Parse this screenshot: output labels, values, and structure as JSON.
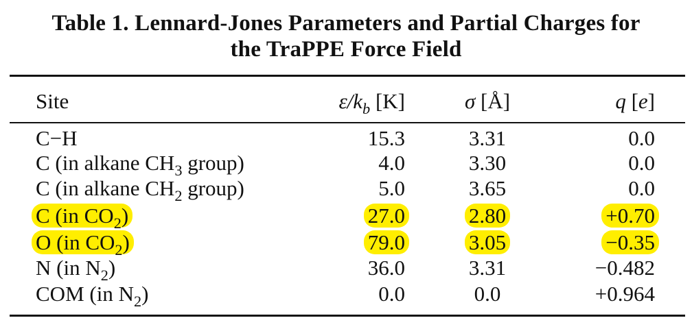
{
  "caption": {
    "line1": "Table 1.  Lennard-Jones Parameters and Partial Charges for",
    "line2": "the TraPPE Force Field"
  },
  "headers": {
    "site": "Site",
    "eps_sym": "ε/k",
    "eps_sub": "b",
    "eps_unit": " [K]",
    "sigma_sym": "σ",
    "sigma_unit": " [Å]",
    "q_sym": "q",
    "q_unit_open": " [",
    "q_unit_e": "e",
    "q_unit_close": "]"
  },
  "rows": [
    {
      "site": "C−H",
      "eps": "15.3",
      "sigma": "3.31",
      "q": "0.0",
      "highlight": false
    },
    {
      "site_pre": "C (in alkane CH",
      "site_sub": "3",
      "site_post": " group)",
      "eps": "4.0",
      "sigma": "3.30",
      "q": "0.0",
      "highlight": false
    },
    {
      "site_pre": "C (in alkane CH",
      "site_sub": "2",
      "site_post": " group)",
      "eps": "5.0",
      "sigma": "3.65",
      "q": "0.0",
      "highlight": false
    },
    {
      "site_pre": "C (in CO",
      "site_sub": "2",
      "site_post": ")",
      "eps": "27.0",
      "sigma": "2.80",
      "q": "+0.70",
      "highlight": true
    },
    {
      "site_pre": "O (in CO",
      "site_sub": "2",
      "site_post": ")",
      "eps": "79.0",
      "sigma": "3.05",
      "q": "−0.35",
      "highlight": true
    },
    {
      "site_pre": "N (in N",
      "site_sub": "2",
      "site_post": ")",
      "eps": "36.0",
      "sigma": "3.31",
      "q": "−0.482",
      "highlight": false
    },
    {
      "site_pre": "COM (in N",
      "site_sub": "2",
      "site_post": ")",
      "eps": "0.0",
      "sigma": "0.0",
      "q": "+0.964",
      "highlight": false
    }
  ],
  "highlight_color": "#ffee00"
}
